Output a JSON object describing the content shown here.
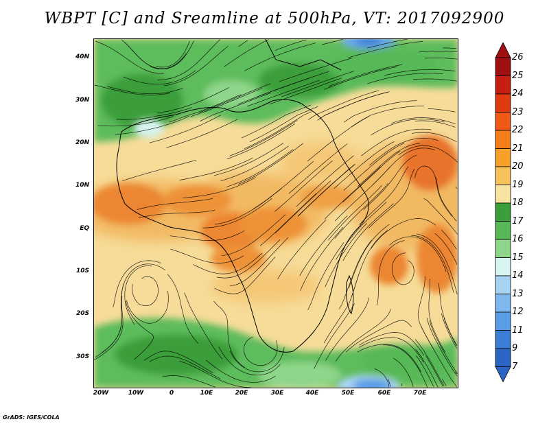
{
  "title": "WBPT [C] and Sreamline at 500hPa, VT: 2017092900",
  "credit": "GrADS: IGES/COLA",
  "map": {
    "lat_labels": [
      "40N",
      "30N",
      "20N",
      "10N",
      "EQ",
      "10S",
      "20S",
      "30S"
    ],
    "lon_labels": [
      "20W",
      "10W",
      "0",
      "10E",
      "20E",
      "30E",
      "40E",
      "50E",
      "60E",
      "70E"
    ],
    "field": "wet-bulb potential temperature",
    "overlay": "streamlines",
    "level": "500hPa"
  },
  "colorbar": {
    "labels": [
      "26",
      "25",
      "24",
      "23",
      "22",
      "21",
      "20",
      "19",
      "18",
      "17",
      "16",
      "15",
      "14",
      "13",
      "12",
      "11",
      "9",
      "7"
    ],
    "colors": [
      "#a01010",
      "#c81e10",
      "#e03a10",
      "#f05a14",
      "#f47d1a",
      "#f6a02a",
      "#f6c35a",
      "#f8e4a0",
      "#3a9e3a",
      "#56b856",
      "#8fd68a",
      "#d8f4f0",
      "#a8d4f4",
      "#7eb8ee",
      "#5a9ce6",
      "#3a7ed8",
      "#2a64c4"
    ],
    "arrow_top_color": "#a01010",
    "arrow_bottom_color": "#2a64c4"
  }
}
